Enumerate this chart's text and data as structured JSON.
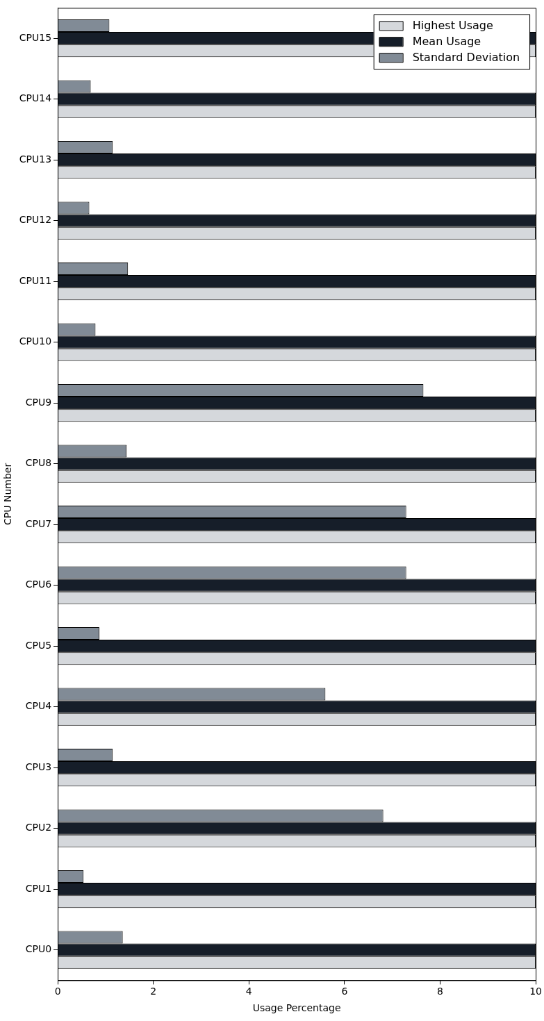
{
  "chart_data": {
    "type": "bar",
    "orientation": "horizontal",
    "xlabel": "Usage Percentage",
    "ylabel": "CPU Number",
    "categories": [
      "CPU15",
      "CPU14",
      "CPU13",
      "CPU12",
      "CPU11",
      "CPU10",
      "CPU9",
      "CPU8",
      "CPU7",
      "CPU6",
      "CPU5",
      "CPU4",
      "CPU3",
      "CPU2",
      "CPU1",
      "CPU0"
    ],
    "series": [
      {
        "name": "Highest Usage",
        "color": "#d5d8dc",
        "values": [
          10,
          10,
          10,
          10,
          10,
          10,
          10,
          10,
          10,
          10,
          10,
          10,
          10,
          10,
          10,
          10
        ]
      },
      {
        "name": "Mean Usage",
        "color": "#161e29",
        "values": [
          10,
          10,
          10,
          10,
          10,
          10,
          10,
          10,
          10,
          10,
          10,
          10,
          10,
          10,
          10,
          10
        ]
      },
      {
        "name": "Standard Deviation",
        "color": "#818b96",
        "values": [
          1.08,
          0.69,
          1.15,
          0.66,
          1.47,
          0.79,
          7.65,
          1.44,
          7.29,
          7.29,
          0.87,
          5.6,
          1.15,
          6.81,
          0.54,
          1.36
        ]
      }
    ],
    "xlim": [
      0,
      10
    ],
    "xticks": [
      0,
      2,
      4,
      6,
      8,
      10
    ],
    "grid": false,
    "legend": "top right"
  }
}
